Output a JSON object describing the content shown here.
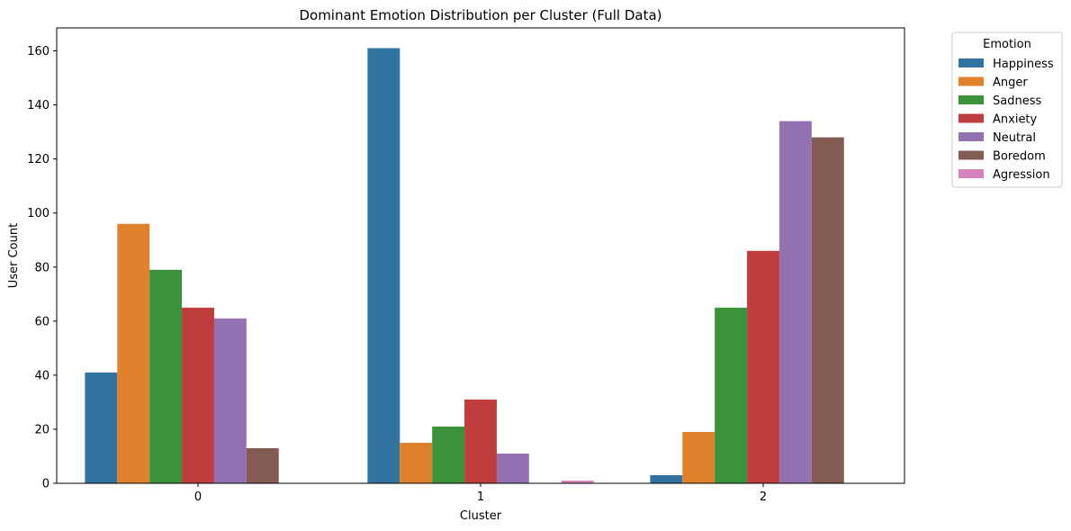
{
  "chart_data": {
    "type": "bar",
    "title": "Dominant Emotion Distribution per Cluster (Full Data)",
    "xlabel": "Cluster",
    "ylabel": "User Count",
    "categories": [
      "0",
      "1",
      "2"
    ],
    "ylim": [
      0,
      168.5
    ],
    "yticks": [
      0,
      20,
      40,
      60,
      80,
      100,
      120,
      140,
      160
    ],
    "legend": {
      "title": "Emotion",
      "placement": "outside-top-right"
    },
    "grid": false,
    "series": [
      {
        "name": "Happiness",
        "color": "#3274a1",
        "values": [
          41,
          161,
          3
        ]
      },
      {
        "name": "Anger",
        "color": "#e1812c",
        "values": [
          96,
          15,
          19
        ]
      },
      {
        "name": "Sadness",
        "color": "#3a923a",
        "values": [
          79,
          21,
          65
        ]
      },
      {
        "name": "Anxiety",
        "color": "#c03d3e",
        "values": [
          65,
          31,
          86
        ]
      },
      {
        "name": "Neutral",
        "color": "#9372b2",
        "values": [
          61,
          11,
          134
        ]
      },
      {
        "name": "Boredom",
        "color": "#845b53",
        "values": [
          13,
          0,
          128
        ]
      },
      {
        "name": "Agression",
        "color": "#d684bd",
        "values": [
          0,
          1,
          0
        ]
      }
    ]
  }
}
